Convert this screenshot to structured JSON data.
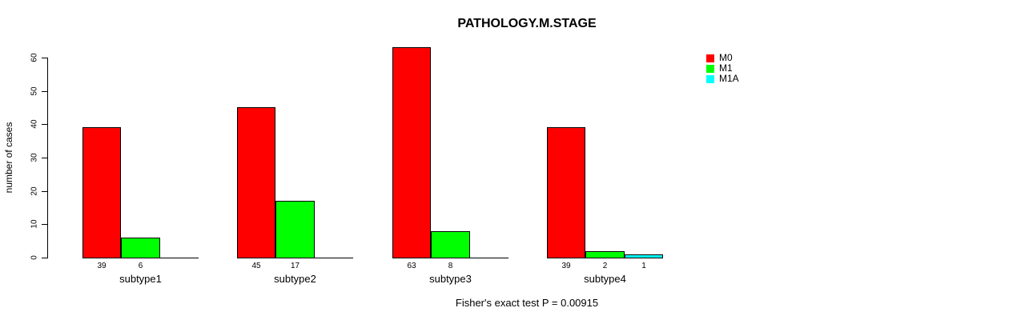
{
  "title": "PATHOLOGY.M.STAGE",
  "caption": "Fisher's exact test P = 0.00915",
  "chart_data": {
    "type": "bar",
    "title": "PATHOLOGY.M.STAGE",
    "xlabel": "",
    "ylabel": "number of cases",
    "categories": [
      "subtype1",
      "subtype2",
      "subtype3",
      "subtype4"
    ],
    "series": [
      {
        "name": "M0",
        "color": "#ff0000",
        "values": [
          39,
          45,
          63,
          39
        ]
      },
      {
        "name": "M1",
        "color": "#00ff00",
        "values": [
          6,
          17,
          8,
          2
        ]
      },
      {
        "name": "M1A",
        "color": "#00ffff",
        "values": [
          0,
          0,
          0,
          1
        ]
      }
    ],
    "bar_labels": [
      [
        "39",
        "6",
        ""
      ],
      [
        "45",
        "17",
        ""
      ],
      [
        "63",
        "8",
        ""
      ],
      [
        "39",
        "2",
        "1"
      ]
    ],
    "yticks": [
      0,
      10,
      20,
      30,
      40,
      50,
      60
    ],
    "ylim": [
      0,
      60
    ],
    "grid": false,
    "legend_position": "topright",
    "annotation": "Fisher's exact test P = 0.00915"
  }
}
